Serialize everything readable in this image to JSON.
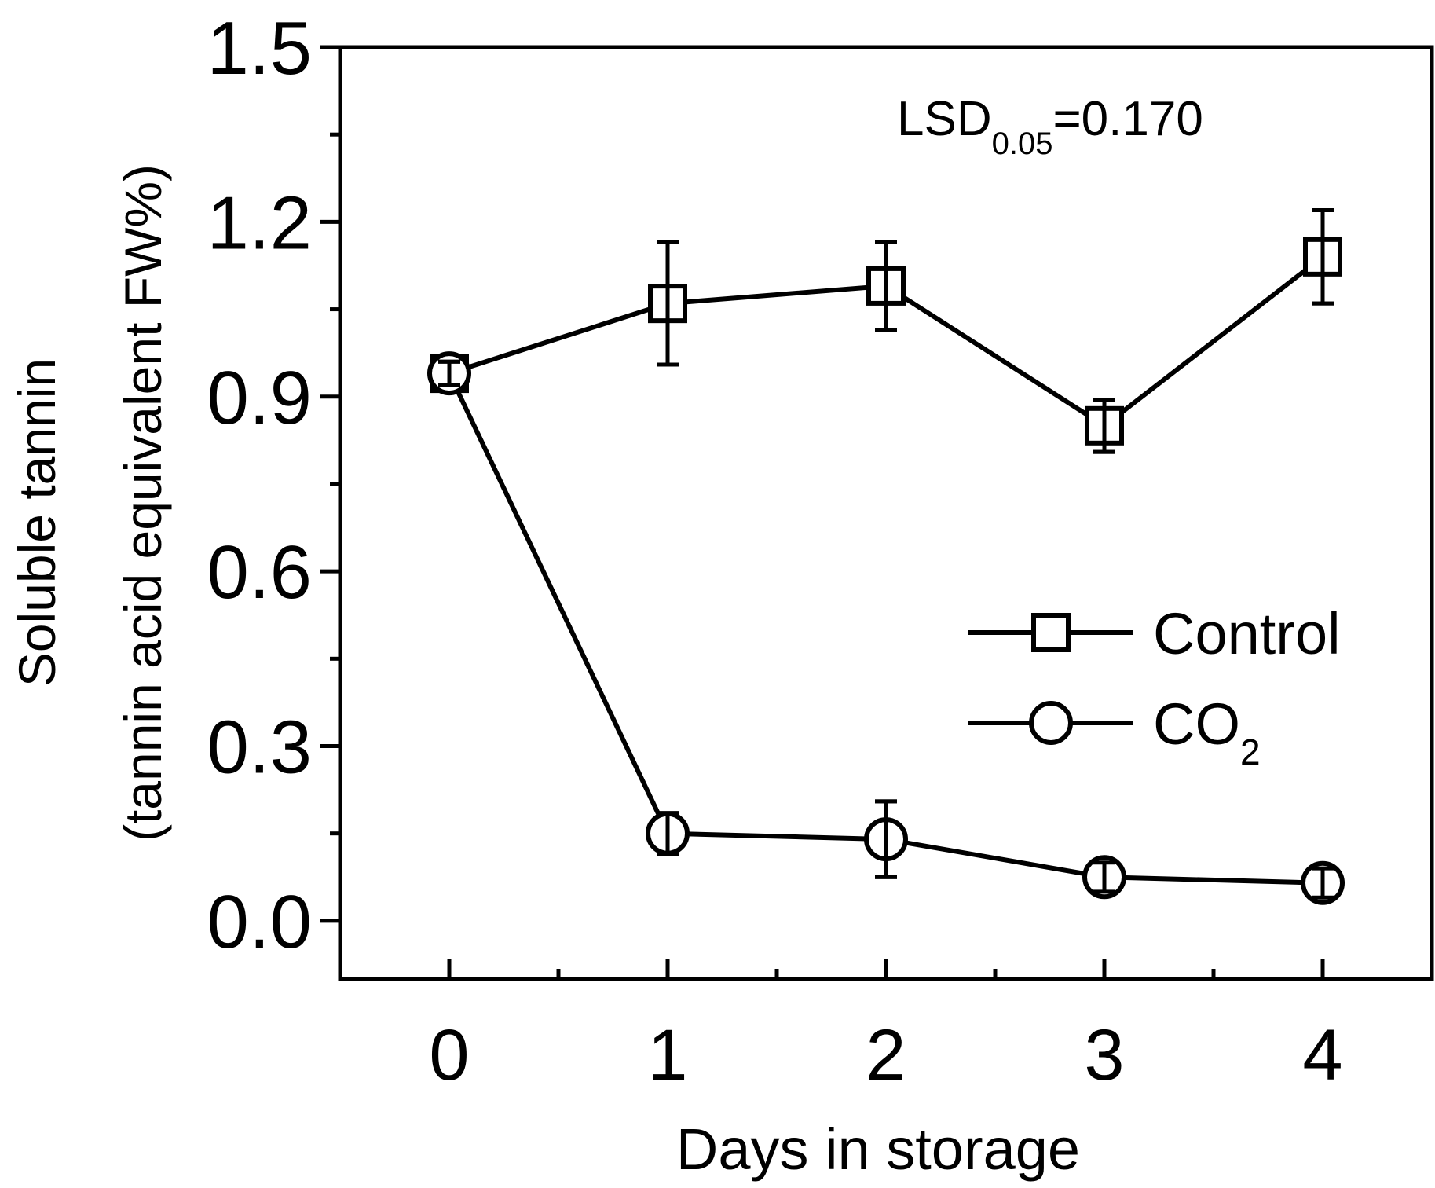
{
  "chart_data": {
    "type": "line",
    "xlabel": "Days in storage",
    "ylabel_line1": "Soluble tannin",
    "ylabel_line2": "(tannin acid equivalent FW%)",
    "xlim": [
      -0.5,
      4.5
    ],
    "ylim": [
      -0.1,
      1.5
    ],
    "x_ticks": [
      0,
      1,
      2,
      3,
      4
    ],
    "x_tick_labels": [
      "0",
      "1",
      "2",
      "3",
      "4"
    ],
    "x_minor_ticks": [
      0.5,
      1.5,
      2.5,
      3.5
    ],
    "y_ticks": [
      0.0,
      0.3,
      0.6,
      0.9,
      1.2,
      1.5
    ],
    "y_tick_labels": [
      "0.0",
      "0.3",
      "0.6",
      "0.9",
      "1.2",
      "1.5"
    ],
    "y_minor_ticks": [
      0.15,
      0.45,
      0.75,
      1.05,
      1.35
    ],
    "grid": false,
    "legend_position": "center-right",
    "annotation": {
      "main": "LSD",
      "sub": "0.05",
      "tail": "=0.170"
    },
    "series": [
      {
        "name": "Control",
        "marker": "square",
        "x": [
          0,
          1,
          2,
          3,
          4
        ],
        "y": [
          0.94,
          1.06,
          1.09,
          0.85,
          1.14
        ],
        "error": [
          0.02,
          0.105,
          0.075,
          0.045,
          0.08
        ]
      },
      {
        "name": "CO",
        "name_sub": "2",
        "marker": "circle",
        "x": [
          0,
          1,
          2,
          3,
          4
        ],
        "y": [
          0.94,
          0.15,
          0.14,
          0.075,
          0.065
        ],
        "error": [
          0.02,
          0.035,
          0.065,
          0.025,
          0.025
        ]
      }
    ]
  }
}
